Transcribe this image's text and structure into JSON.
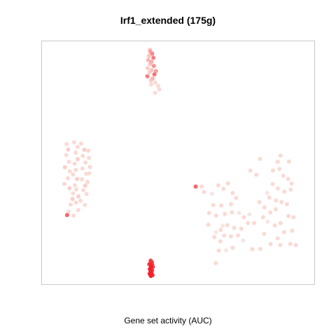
{
  "chart_data": {
    "type": "scatter",
    "title": "Irf1_extended (175g)",
    "xlabel": "Gene set activity (AUC)",
    "ylabel": "",
    "grid": false,
    "axes_ticks": false,
    "color_scale": {
      "low": "#f2f2f2",
      "mid": "#fadad5",
      "high": "#f4202b"
    },
    "xlim": [
      0,
      100
    ],
    "ylim": [
      0,
      100
    ],
    "clusters": [
      {
        "name": "",
        "points": [
          {
            "x": 39.7,
            "y": 96.3,
            "a": 0.45
          },
          {
            "x": 40.4,
            "y": 95.4,
            "a": 0.55
          },
          {
            "x": 39.2,
            "y": 94.5,
            "a": 0.3
          },
          {
            "x": 40.8,
            "y": 93.7,
            "a": 0.6
          },
          {
            "x": 38.9,
            "y": 92.8,
            "a": 0.35
          },
          {
            "x": 40.1,
            "y": 92.0,
            "a": 0.4
          },
          {
            "x": 39.6,
            "y": 91.1,
            "a": 0.3
          },
          {
            "x": 41.0,
            "y": 90.3,
            "a": 0.5
          },
          {
            "x": 38.7,
            "y": 89.4,
            "a": 0.25
          },
          {
            "x": 40.2,
            "y": 88.6,
            "a": 0.3
          },
          {
            "x": 39.4,
            "y": 87.7,
            "a": 0.25
          },
          {
            "x": 41.2,
            "y": 86.8,
            "a": 0.65
          },
          {
            "x": 38.6,
            "y": 86.0,
            "a": 0.6
          },
          {
            "x": 40.6,
            "y": 85.1,
            "a": 0.35
          },
          {
            "x": 39.9,
            "y": 84.3,
            "a": 0.25
          },
          {
            "x": 41.5,
            "y": 83.4,
            "a": 0.2
          },
          {
            "x": 40.0,
            "y": 82.6,
            "a": 0.2
          },
          {
            "x": 42.6,
            "y": 82.0,
            "a": 0.2
          },
          {
            "x": 43.0,
            "y": 80.5,
            "a": 0.2
          },
          {
            "x": 41.4,
            "y": 79.1,
            "a": 0.2
          },
          {
            "x": 39.5,
            "y": 97.0,
            "a": 0.3
          },
          {
            "x": 41.8,
            "y": 88.2,
            "a": 0.45
          }
        ]
      },
      {
        "name": "",
        "points": [
          {
            "x": 8.6,
            "y": 57.8,
            "a": 0.2
          },
          {
            "x": 9.2,
            "y": 55.5,
            "a": 0.25
          },
          {
            "x": 8.5,
            "y": 53.2,
            "a": 0.2
          },
          {
            "x": 9.5,
            "y": 50.4,
            "a": 0.2
          },
          {
            "x": 8.0,
            "y": 48.1,
            "a": 0.25
          },
          {
            "x": 9.8,
            "y": 46.4,
            "a": 0.2
          },
          {
            "x": 9.1,
            "y": 43.5,
            "a": 0.2
          },
          {
            "x": 7.8,
            "y": 41.2,
            "a": 0.2
          },
          {
            "x": 9.7,
            "y": 39.4,
            "a": 0.25
          },
          {
            "x": 11.0,
            "y": 37.2,
            "a": 0.2
          },
          {
            "x": 10.8,
            "y": 34.9,
            "a": 0.25
          },
          {
            "x": 10.1,
            "y": 32.6,
            "a": 0.2
          },
          {
            "x": 9.3,
            "y": 29.6,
            "a": 0.2
          },
          {
            "x": 8.8,
            "y": 28.2,
            "a": 0.7
          },
          {
            "x": 11.2,
            "y": 28.0,
            "a": 0.2
          },
          {
            "x": 12.9,
            "y": 30.3,
            "a": 0.2
          },
          {
            "x": 12.1,
            "y": 33.4,
            "a": 0.2
          },
          {
            "x": 13.0,
            "y": 36.0,
            "a": 0.25
          },
          {
            "x": 12.2,
            "y": 38.9,
            "a": 0.2
          },
          {
            "x": 11.7,
            "y": 40.6,
            "a": 0.2
          },
          {
            "x": 12.5,
            "y": 43.2,
            "a": 0.25
          },
          {
            "x": 11.0,
            "y": 45.1,
            "a": 0.2
          },
          {
            "x": 12.0,
            "y": 47.0,
            "a": 0.2
          },
          {
            "x": 11.6,
            "y": 49.6,
            "a": 0.2
          },
          {
            "x": 12.7,
            "y": 51.5,
            "a": 0.25
          },
          {
            "x": 12.0,
            "y": 54.2,
            "a": 0.2
          },
          {
            "x": 12.7,
            "y": 56.6,
            "a": 0.2
          },
          {
            "x": 11.4,
            "y": 58.5,
            "a": 0.2
          },
          {
            "x": 14.0,
            "y": 58.0,
            "a": 0.2
          },
          {
            "x": 15.2,
            "y": 55.4,
            "a": 0.25
          },
          {
            "x": 14.6,
            "y": 52.9,
            "a": 0.2
          },
          {
            "x": 15.6,
            "y": 50.1,
            "a": 0.2
          },
          {
            "x": 14.5,
            "y": 47.6,
            "a": 0.2
          },
          {
            "x": 15.9,
            "y": 45.4,
            "a": 0.2
          },
          {
            "x": 14.3,
            "y": 43.1,
            "a": 0.2
          },
          {
            "x": 15.5,
            "y": 40.5,
            "a": 0.25
          },
          {
            "x": 14.8,
            "y": 38.6,
            "a": 0.2
          },
          {
            "x": 16.0,
            "y": 37.0,
            "a": 0.2
          },
          {
            "x": 13.8,
            "y": 34.2,
            "a": 0.2
          },
          {
            "x": 15.4,
            "y": 32.4,
            "a": 0.2
          },
          {
            "x": 16.9,
            "y": 52.0,
            "a": 0.2
          },
          {
            "x": 16.7,
            "y": 55.0,
            "a": 0.2
          },
          {
            "x": 17.3,
            "y": 48.2,
            "a": 0.2
          },
          {
            "x": 16.4,
            "y": 42.0,
            "a": 0.2
          },
          {
            "x": 17.0,
            "y": 45.6,
            "a": 0.2
          }
        ]
      },
      {
        "name": "",
        "points": [
          {
            "x": 39.8,
            "y": 9.2,
            "a": 0.85
          },
          {
            "x": 40.2,
            "y": 8.6,
            "a": 0.9
          },
          {
            "x": 39.6,
            "y": 8.0,
            "a": 0.95
          },
          {
            "x": 40.4,
            "y": 7.5,
            "a": 0.9
          },
          {
            "x": 39.9,
            "y": 6.9,
            "a": 1.0
          },
          {
            "x": 40.0,
            "y": 6.3,
            "a": 0.95
          },
          {
            "x": 39.5,
            "y": 5.7,
            "a": 1.0
          },
          {
            "x": 40.3,
            "y": 5.2,
            "a": 0.9
          },
          {
            "x": 39.8,
            "y": 4.6,
            "a": 1.0
          },
          {
            "x": 40.1,
            "y": 4.0,
            "a": 0.95
          },
          {
            "x": 39.7,
            "y": 3.4,
            "a": 1.0
          },
          {
            "x": 40.5,
            "y": 3.2,
            "a": 0.9
          },
          {
            "x": 39.4,
            "y": 3.8,
            "a": 0.85
          },
          {
            "x": 40.6,
            "y": 6.6,
            "a": 0.85
          },
          {
            "x": 39.3,
            "y": 7.7,
            "a": 0.8
          },
          {
            "x": 39.9,
            "y": 2.9,
            "a": 1.0
          }
        ]
      },
      {
        "name": "",
        "points": [
          {
            "x": 56.5,
            "y": 40.1,
            "a": 0.7
          },
          {
            "x": 58.7,
            "y": 40.1,
            "a": 0.2
          },
          {
            "x": 59.6,
            "y": 37.8,
            "a": 0.2
          },
          {
            "x": 62.5,
            "y": 37.1,
            "a": 0.1
          },
          {
            "x": 64.9,
            "y": 40.6,
            "a": 0.2
          },
          {
            "x": 66.8,
            "y": 39.1,
            "a": 0.2
          },
          {
            "x": 68.5,
            "y": 41.4,
            "a": 0.2
          },
          {
            "x": 70.2,
            "y": 37.4,
            "a": 0.2
          },
          {
            "x": 71.5,
            "y": 35.3,
            "a": 0.2
          },
          {
            "x": 69.6,
            "y": 32.7,
            "a": 0.2
          },
          {
            "x": 66.0,
            "y": 32.2,
            "a": 0.2
          },
          {
            "x": 63.0,
            "y": 32.4,
            "a": 0.2
          },
          {
            "x": 61.5,
            "y": 29.1,
            "a": 0.2
          },
          {
            "x": 64.1,
            "y": 28.0,
            "a": 0.2
          },
          {
            "x": 67.3,
            "y": 28.7,
            "a": 0.2
          },
          {
            "x": 70.0,
            "y": 29.4,
            "a": 0.2
          },
          {
            "x": 72.6,
            "y": 29.1,
            "a": 0.1
          },
          {
            "x": 74.4,
            "y": 27.3,
            "a": 0.2
          },
          {
            "x": 76.4,
            "y": 28.5,
            "a": 0.1
          },
          {
            "x": 75.9,
            "y": 24.9,
            "a": 0.2
          },
          {
            "x": 73.4,
            "y": 22.5,
            "a": 0.2
          },
          {
            "x": 70.8,
            "y": 22.9,
            "a": 0.2
          },
          {
            "x": 68.2,
            "y": 24.0,
            "a": 0.2
          },
          {
            "x": 65.8,
            "y": 22.0,
            "a": 0.2
          },
          {
            "x": 64.0,
            "y": 21.1,
            "a": 0.1
          },
          {
            "x": 61.2,
            "y": 24.2,
            "a": 0.2
          },
          {
            "x": 63.4,
            "y": 19.0,
            "a": 0.2
          },
          {
            "x": 65.7,
            "y": 17.3,
            "a": 0.2
          },
          {
            "x": 67.1,
            "y": 19.7,
            "a": 0.2
          },
          {
            "x": 69.6,
            "y": 19.4,
            "a": 0.2
          },
          {
            "x": 72.2,
            "y": 19.7,
            "a": 0.2
          },
          {
            "x": 74.1,
            "y": 17.6,
            "a": 0.1
          },
          {
            "x": 70.2,
            "y": 14.6,
            "a": 0.2
          },
          {
            "x": 67.8,
            "y": 13.6,
            "a": 0.1
          },
          {
            "x": 65.1,
            "y": 13.4,
            "a": 0.2
          },
          {
            "x": 64.0,
            "y": 8.2,
            "a": 0.2
          },
          {
            "x": 66.5,
            "y": 23.7,
            "a": 0.1
          },
          {
            "x": 77.5,
            "y": 14.0,
            "a": 0.2
          },
          {
            "x": 80.5,
            "y": 14.1,
            "a": 0.2
          },
          {
            "x": 78.2,
            "y": 24.9,
            "a": 0.2
          },
          {
            "x": 79.0,
            "y": 45.0,
            "a": 0.2
          },
          {
            "x": 76.8,
            "y": 46.7,
            "a": 0.2
          },
          {
            "x": 80.4,
            "y": 51.6,
            "a": 0.2
          },
          {
            "x": 86.9,
            "y": 50.4,
            "a": 0.2
          },
          {
            "x": 88.0,
            "y": 53.0,
            "a": 0.2
          },
          {
            "x": 91.1,
            "y": 50.5,
            "a": 0.2
          },
          {
            "x": 87.6,
            "y": 47.4,
            "a": 0.2
          },
          {
            "x": 85.2,
            "y": 46.8,
            "a": 0.2
          },
          {
            "x": 89.0,
            "y": 44.6,
            "a": 0.2
          },
          {
            "x": 90.8,
            "y": 43.3,
            "a": 0.2
          },
          {
            "x": 92.1,
            "y": 41.3,
            "a": 0.2
          },
          {
            "x": 91.8,
            "y": 38.8,
            "a": 0.2
          },
          {
            "x": 89.4,
            "y": 38.0,
            "a": 0.2
          },
          {
            "x": 87.0,
            "y": 39.3,
            "a": 0.2
          },
          {
            "x": 85.1,
            "y": 41.1,
            "a": 0.2
          },
          {
            "x": 83.8,
            "y": 35.5,
            "a": 0.2
          },
          {
            "x": 86.3,
            "y": 34.3,
            "a": 0.2
          },
          {
            "x": 88.3,
            "y": 33.6,
            "a": 0.2
          },
          {
            "x": 86.2,
            "y": 30.6,
            "a": 0.2
          },
          {
            "x": 84.2,
            "y": 29.3,
            "a": 0.2
          },
          {
            "x": 82.0,
            "y": 31.4,
            "a": 0.2
          },
          {
            "x": 81.5,
            "y": 27.3,
            "a": 0.2
          },
          {
            "x": 83.2,
            "y": 25.4,
            "a": 0.1
          },
          {
            "x": 85.9,
            "y": 23.9,
            "a": 0.2
          },
          {
            "x": 88.0,
            "y": 24.8,
            "a": 0.2
          },
          {
            "x": 90.9,
            "y": 27.8,
            "a": 0.2
          },
          {
            "x": 92.8,
            "y": 27.3,
            "a": 0.2
          },
          {
            "x": 89.3,
            "y": 21.1,
            "a": 0.2
          },
          {
            "x": 86.9,
            "y": 18.5,
            "a": 0.2
          },
          {
            "x": 84.3,
            "y": 16.1,
            "a": 0.2
          },
          {
            "x": 87.9,
            "y": 15.7,
            "a": 0.2
          },
          {
            "x": 91.6,
            "y": 16.2,
            "a": 0.2
          },
          {
            "x": 93.7,
            "y": 15.7,
            "a": 0.2
          },
          {
            "x": 92.3,
            "y": 21.7,
            "a": 0.2
          },
          {
            "x": 90.4,
            "y": 32.7,
            "a": 0.2
          },
          {
            "x": 83.0,
            "y": 37.4,
            "a": 0.1
          },
          {
            "x": 80.1,
            "y": 33.6,
            "a": 0.2
          },
          {
            "x": 81.9,
            "y": 20.4,
            "a": 0.2
          }
        ]
      }
    ]
  }
}
